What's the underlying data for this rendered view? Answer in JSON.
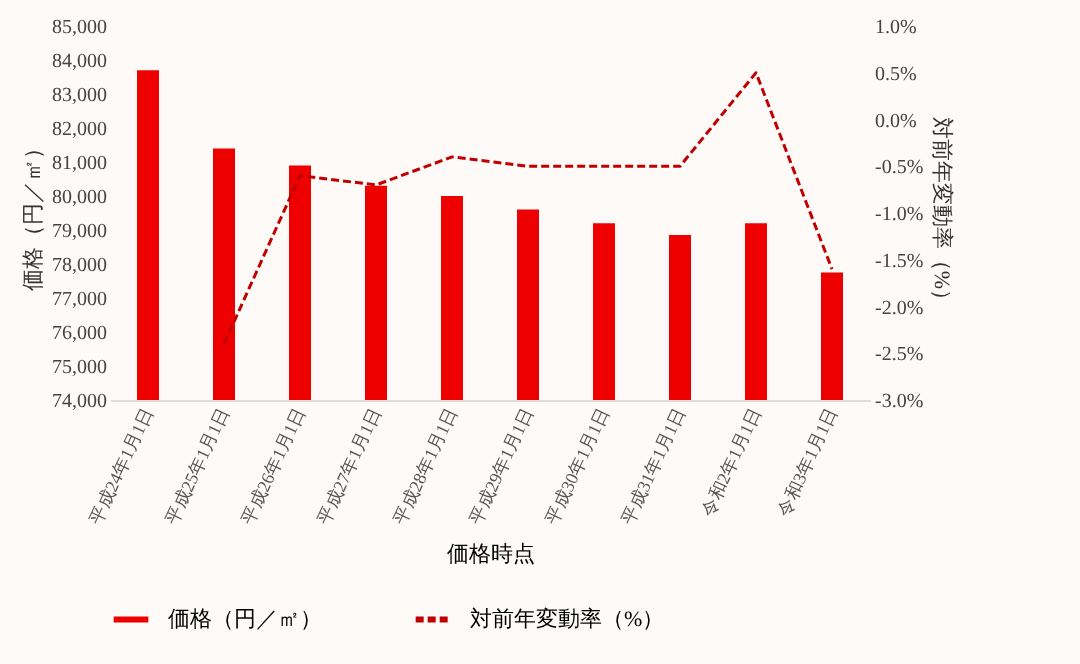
{
  "chart_data": {
    "type": "bar",
    "xlabel": "価格時点",
    "ylabel": "価格（円／㎡）",
    "y2label": "対前年変動率（%）",
    "categories": [
      "平成24年1月1日",
      "平成25年1月1日",
      "平成26年1月1日",
      "平成27年1月1日",
      "平成28年1月1日",
      "平成29年1月1日",
      "平成30年1月1日",
      "平成31年1月1日",
      "令和2年1月1日",
      "令和3年1月1日"
    ],
    "series": [
      {
        "name": "価格（円／㎡）",
        "type": "bar",
        "color": "#ee0000",
        "values": [
          83700,
          81400,
          80900,
          80300,
          80000,
          79600,
          79200,
          78850,
          79200,
          77750
        ]
      },
      {
        "name": "対前年変動率（%）",
        "type": "line",
        "axis": "y2",
        "color": "#c00000",
        "line_style": "dashed",
        "values": [
          null,
          -2.4,
          -0.6,
          -0.7,
          -0.4,
          -0.5,
          -0.5,
          -0.5,
          0.5,
          -1.6
        ]
      }
    ],
    "ylim": [
      74000,
      85000
    ],
    "yticks": [
      {
        "value": 74000,
        "label": "74,000"
      },
      {
        "value": 75000,
        "label": "75,000"
      },
      {
        "value": 76000,
        "label": "76,000"
      },
      {
        "value": 77000,
        "label": "77,000"
      },
      {
        "value": 78000,
        "label": "78,000"
      },
      {
        "value": 79000,
        "label": "79,000"
      },
      {
        "value": 80000,
        "label": "80,000"
      },
      {
        "value": 81000,
        "label": "81,000"
      },
      {
        "value": 82000,
        "label": "82,000"
      },
      {
        "value": 83000,
        "label": "83,000"
      },
      {
        "value": 84000,
        "label": "84,000"
      },
      {
        "value": 85000,
        "label": "85,000"
      }
    ],
    "y2lim": [
      -3.0,
      1.0
    ],
    "y2ticks": [
      {
        "value": -3.0,
        "label": "-3.0%"
      },
      {
        "value": -2.5,
        "label": "-2.5%"
      },
      {
        "value": -2.0,
        "label": "-2.0%"
      },
      {
        "value": -1.5,
        "label": "-1.5%"
      },
      {
        "value": -1.0,
        "label": "-1.0%"
      },
      {
        "value": -0.5,
        "label": "-0.5%"
      },
      {
        "value": 0.0,
        "label": "0.0%"
      },
      {
        "value": 0.5,
        "label": "0.5%"
      },
      {
        "value": 1.0,
        "label": "1.0%"
      }
    ],
    "grid": false,
    "legend": "bottom"
  }
}
